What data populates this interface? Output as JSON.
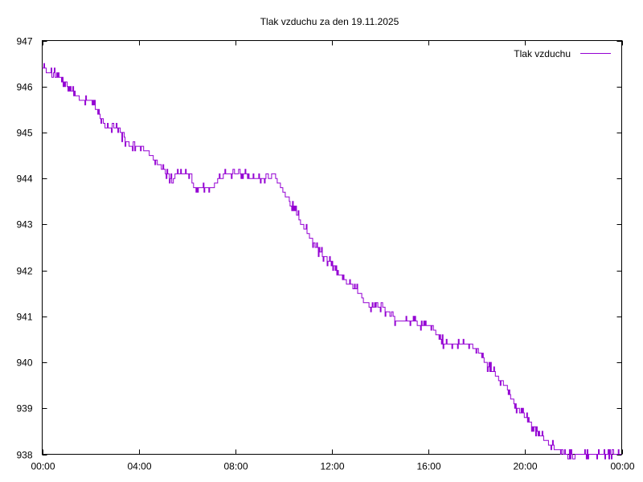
{
  "chart_data": {
    "type": "line",
    "title": "Tlak vzduchu za den 19.11.2025",
    "xlabel": "",
    "ylabel": "",
    "xlim": [
      "00:00",
      "24:00"
    ],
    "ylim": [
      938,
      947
    ],
    "x_tick_labels": [
      "00:00",
      "04:00",
      "08:00",
      "12:00",
      "16:00",
      "20:00",
      "00:00"
    ],
    "y_tick_labels": [
      "938",
      "939",
      "940",
      "941",
      "942",
      "943",
      "944",
      "945",
      "946",
      "947"
    ],
    "grid": false,
    "legend_position": "top-right",
    "series": [
      {
        "name": "Tlak vzduchu",
        "color": "#9400d3",
        "x": [
          "00:00",
          "00:20",
          "00:40",
          "01:00",
          "01:20",
          "01:40",
          "02:00",
          "02:20",
          "02:40",
          "03:00",
          "03:20",
          "03:40",
          "04:00",
          "04:20",
          "04:40",
          "05:00",
          "05:20",
          "05:40",
          "06:00",
          "06:20",
          "06:40",
          "07:00",
          "07:20",
          "07:40",
          "08:00",
          "08:20",
          "08:40",
          "09:00",
          "09:20",
          "09:40",
          "10:00",
          "10:20",
          "10:40",
          "11:00",
          "11:20",
          "11:40",
          "12:00",
          "12:20",
          "12:40",
          "13:00",
          "13:20",
          "13:40",
          "14:00",
          "14:20",
          "14:40",
          "15:00",
          "15:20",
          "15:40",
          "16:00",
          "16:20",
          "16:40",
          "17:00",
          "17:20",
          "17:40",
          "18:00",
          "18:20",
          "18:40",
          "19:00",
          "19:20",
          "19:40",
          "20:00",
          "20:20",
          "20:40",
          "21:00",
          "21:20",
          "21:40",
          "22:00",
          "22:20",
          "22:40",
          "23:00",
          "23:20",
          "23:40",
          "23:59"
        ],
        "y": [
          946.4,
          946.3,
          946.2,
          946.1,
          945.8,
          945.7,
          945.7,
          945.4,
          945.1,
          945.1,
          944.9,
          944.7,
          944.7,
          944.6,
          944.4,
          944.2,
          944.0,
          944.1,
          944.1,
          943.8,
          943.8,
          943.8,
          944.0,
          944.1,
          944.1,
          944.1,
          944.0,
          944.0,
          944.0,
          944.0,
          943.7,
          943.4,
          943.1,
          942.8,
          942.5,
          942.3,
          942.1,
          941.9,
          941.7,
          941.6,
          941.3,
          941.2,
          941.2,
          941.1,
          940.9,
          940.9,
          940.9,
          940.8,
          940.8,
          940.6,
          940.4,
          940.4,
          940.4,
          940.4,
          940.3,
          940.0,
          939.8,
          939.6,
          939.3,
          939.0,
          938.8,
          938.6,
          938.4,
          938.2,
          938.1,
          938.0,
          938.0,
          938.0,
          938.0,
          938.0,
          938.0,
          938.0,
          938.0
        ]
      }
    ]
  }
}
